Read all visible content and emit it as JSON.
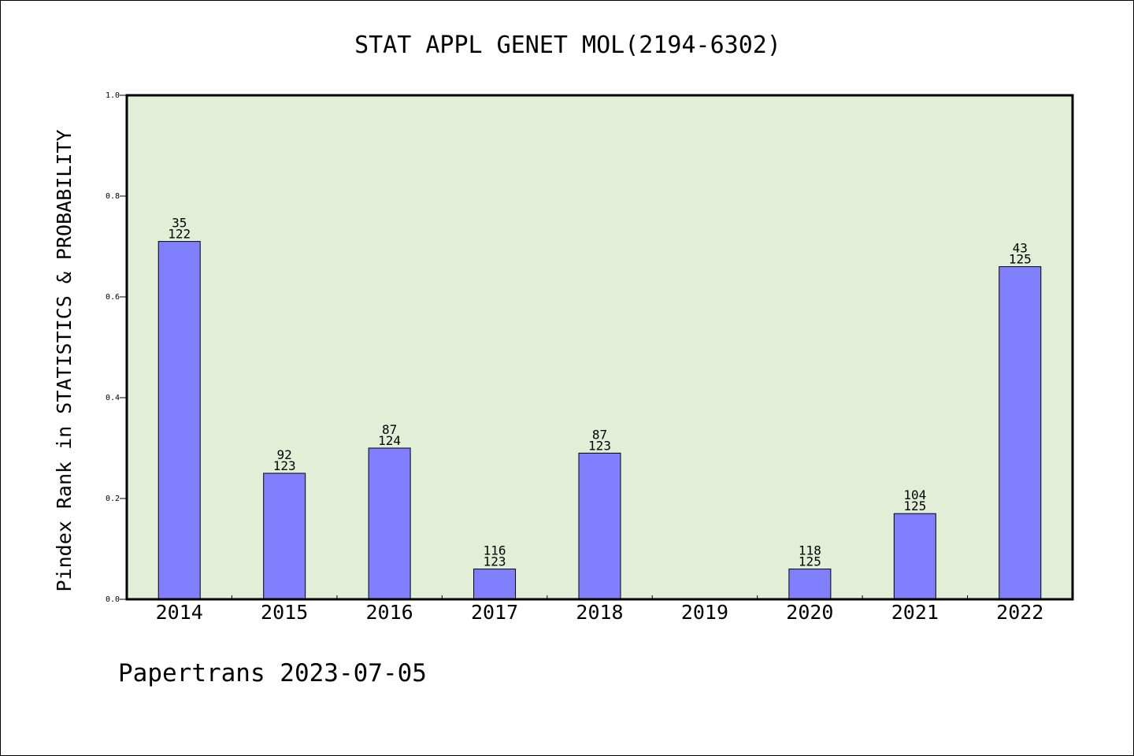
{
  "chart_data": {
    "type": "bar",
    "title": "STAT APPL GENET MOL(2194-6302)",
    "ylabel": "Pindex Rank in STATISTICS & PROBABILITY",
    "xlabel": "",
    "ylim": [
      0,
      1
    ],
    "yticks": [
      "0.0",
      "0.2",
      "0.4",
      "0.6",
      "0.8",
      "1.0"
    ],
    "grid": false,
    "categories": [
      "2014",
      "2015",
      "2016",
      "2017",
      "2018",
      "2019",
      "2020",
      "2021",
      "2022"
    ],
    "values": [
      0.71,
      0.25,
      0.3,
      0.06,
      0.29,
      null,
      0.06,
      0.17,
      0.66
    ],
    "labels_top": [
      "35",
      "92",
      "87",
      "116",
      "87",
      "",
      "118",
      "104",
      "43"
    ],
    "labels_bottom": [
      "122",
      "123",
      "124",
      "123",
      "123",
      "",
      "125",
      "125",
      "125"
    ],
    "colors": {
      "bar": "#8080ff",
      "plot_bg": "#e2efd6"
    }
  },
  "footer": "Papertrans 2023-07-05"
}
